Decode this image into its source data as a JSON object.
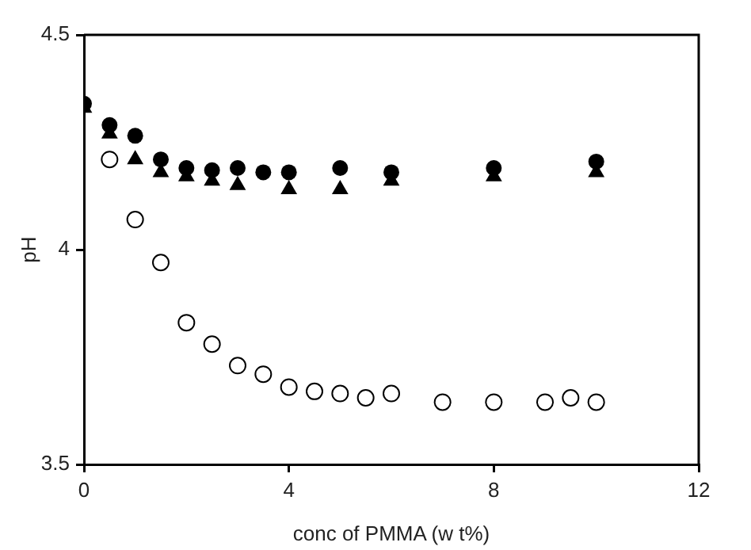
{
  "chart_data": {
    "type": "scatter",
    "xlabel": "conc of PMMA (w t%)",
    "ylabel": "pH",
    "xlim": [
      0,
      12
    ],
    "xticks": [
      0,
      4,
      8,
      12
    ],
    "ylim": [
      3.5,
      4.5
    ],
    "yticks": [
      3.5,
      4,
      4.5
    ],
    "grid": false,
    "legend": false,
    "series": [
      {
        "color": "#000000",
        "marker": "circle",
        "x": [
          0,
          0.5,
          1,
          1.5,
          2,
          2.5,
          3,
          3.5,
          4,
          5,
          6,
          8,
          10
        ],
        "values": [
          4.34,
          4.29,
          4.265,
          4.21,
          4.19,
          4.185,
          4.19,
          4.18,
          4.18,
          4.19,
          4.18,
          4.19,
          4.205
        ]
      },
      {
        "color": "#000000",
        "marker": "triangle",
        "x": [
          0,
          0.5,
          1,
          1.5,
          2,
          2.5,
          3,
          4,
          5,
          6,
          8,
          10
        ],
        "values": [
          4.33,
          4.27,
          4.21,
          4.18,
          4.17,
          4.16,
          4.15,
          4.14,
          4.14,
          4.16,
          4.17,
          4.18
        ]
      },
      {
        "color": "#000000",
        "marker": "circle",
        "x": [
          0.5,
          1,
          1.5,
          2,
          2.5,
          3,
          3.5,
          4,
          4.5,
          5,
          5.5,
          6,
          7,
          8,
          9,
          9.5,
          10
        ],
        "values": [
          4.21,
          4.07,
          3.97,
          3.83,
          3.78,
          3.73,
          3.71,
          3.68,
          3.67,
          3.665,
          3.655,
          3.665,
          3.645,
          3.645,
          3.645,
          3.655,
          3.645
        ]
      }
    ]
  }
}
